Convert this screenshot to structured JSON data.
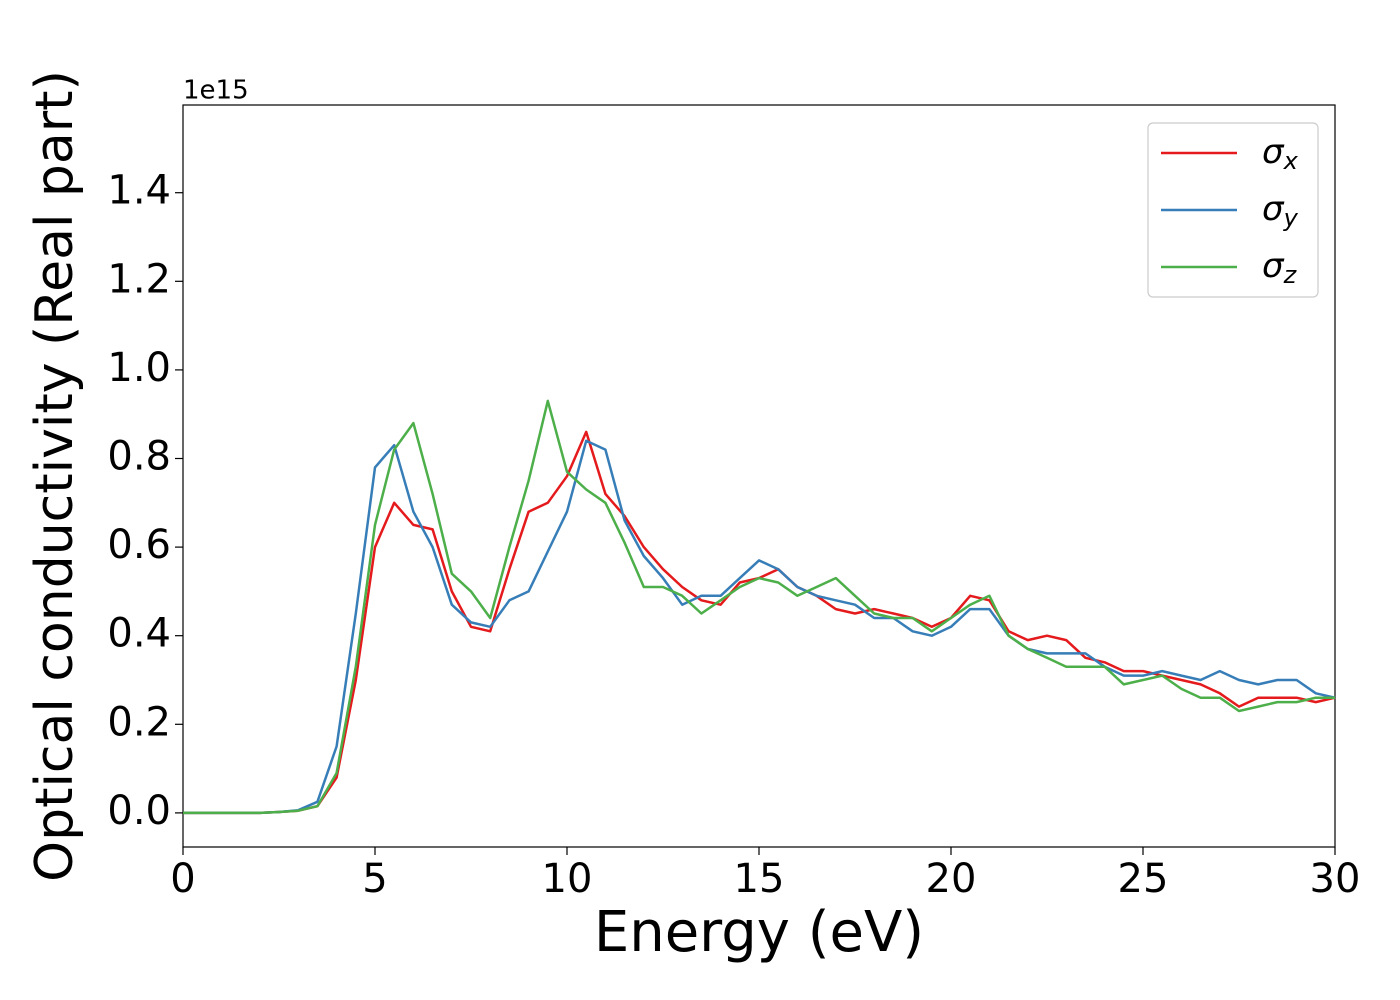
{
  "chart_data": {
    "type": "line",
    "xlabel": "Energy (eV)",
    "ylabel": "Optical conductivity (Real part)",
    "y_offset_label": "1e15",
    "x": [
      0,
      0.5,
      1,
      1.5,
      2,
      2.5,
      3,
      3.5,
      4,
      4.5,
      5,
      5.5,
      6,
      6.5,
      7,
      7.5,
      8,
      8.5,
      9,
      9.5,
      10,
      10.5,
      11,
      11.5,
      12,
      12.5,
      13,
      13.5,
      14,
      14.5,
      15,
      15.5,
      16,
      16.5,
      17,
      17.5,
      18,
      18.5,
      19,
      19.5,
      20,
      20.5,
      21,
      21.5,
      22,
      22.5,
      23,
      23.5,
      24,
      24.5,
      25,
      25.5,
      26,
      26.5,
      27,
      27.5,
      28,
      28.5,
      29,
      29.5,
      30
    ],
    "series": [
      {
        "name": "σx",
        "color": "#e41a1c",
        "values": [
          0,
          0,
          0,
          0,
          0,
          0.002,
          0.005,
          0.015,
          0.08,
          0.3,
          0.6,
          0.7,
          0.65,
          0.64,
          0.5,
          0.42,
          0.41,
          0.55,
          0.68,
          0.7,
          0.76,
          0.86,
          0.72,
          0.67,
          0.6,
          0.55,
          0.51,
          0.48,
          0.47,
          0.52,
          0.53,
          0.55,
          0.51,
          0.49,
          0.46,
          0.45,
          0.46,
          0.45,
          0.44,
          0.42,
          0.44,
          0.49,
          0.48,
          0.41,
          0.39,
          0.4,
          0.39,
          0.35,
          0.34,
          0.32,
          0.32,
          0.31,
          0.3,
          0.29,
          0.27,
          0.24,
          0.26,
          0.26,
          0.26,
          0.25,
          0.26
        ]
      },
      {
        "name": "σy",
        "color": "#377eb8",
        "values": [
          0,
          0,
          0,
          0,
          0,
          0.002,
          0.006,
          0.025,
          0.15,
          0.45,
          0.78,
          0.83,
          0.68,
          0.6,
          0.47,
          0.43,
          0.42,
          0.48,
          0.5,
          0.59,
          0.68,
          0.84,
          0.82,
          0.66,
          0.58,
          0.53,
          0.47,
          0.49,
          0.49,
          0.53,
          0.57,
          0.55,
          0.51,
          0.49,
          0.48,
          0.47,
          0.44,
          0.44,
          0.41,
          0.4,
          0.42,
          0.46,
          0.46,
          0.4,
          0.37,
          0.36,
          0.36,
          0.36,
          0.33,
          0.31,
          0.31,
          0.32,
          0.31,
          0.3,
          0.32,
          0.3,
          0.29,
          0.3,
          0.3,
          0.27,
          0.26
        ]
      },
      {
        "name": "σz",
        "color": "#4daf4a",
        "values": [
          0,
          0,
          0,
          0,
          0,
          0.002,
          0.005,
          0.015,
          0.09,
          0.33,
          0.65,
          0.82,
          0.88,
          0.72,
          0.54,
          0.5,
          0.44,
          0.6,
          0.75,
          0.93,
          0.77,
          0.73,
          0.7,
          0.61,
          0.51,
          0.51,
          0.49,
          0.45,
          0.48,
          0.51,
          0.53,
          0.52,
          0.49,
          0.51,
          0.53,
          0.49,
          0.45,
          0.44,
          0.44,
          0.41,
          0.44,
          0.47,
          0.49,
          0.4,
          0.37,
          0.35,
          0.33,
          0.33,
          0.33,
          0.29,
          0.3,
          0.31,
          0.28,
          0.26,
          0.26,
          0.23,
          0.24,
          0.25,
          0.25,
          0.26,
          0.26
        ]
      }
    ],
    "xlim": [
      0,
      30
    ],
    "xticks": [
      0,
      5,
      10,
      15,
      20,
      25,
      30
    ],
    "ylim": [
      -0.077,
      1.598
    ],
    "yticks": [
      {
        "value": 0,
        "label": "0.0"
      },
      0.2,
      0.4,
      0.6,
      0.8,
      {
        "value": 1,
        "label": "1.0"
      },
      1.2,
      1.4
    ],
    "legend": "upper right",
    "grid": false
  }
}
